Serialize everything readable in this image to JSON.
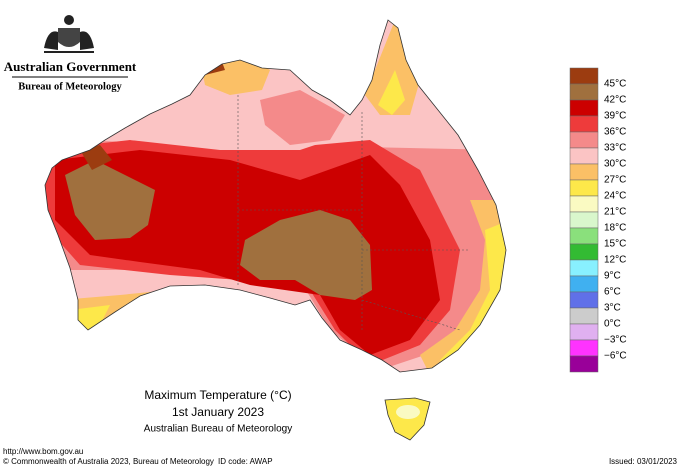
{
  "header": {
    "agency": "Australian Government",
    "bureau": "Bureau of Meteorology"
  },
  "map": {
    "title": "Maximum Temperature (°C)",
    "date": "1st January 2023",
    "source": "Australian Bureau of Meteorology"
  },
  "legend": {
    "colors": [
      "#9c3c10",
      "#a0703e",
      "#cc0000",
      "#ee3b3b",
      "#f48a8a",
      "#fbc4c4",
      "#fbc066",
      "#fde84a",
      "#fafac2",
      "#d9f7cc",
      "#8ae07c",
      "#33bb33",
      "#88f0ff",
      "#40b0f0",
      "#6070e8",
      "#cccccc",
      "#e0b0f0",
      "#ff33ff",
      "#990099"
    ],
    "labels": [
      "45°C",
      "42°C",
      "39°C",
      "36°C",
      "33°C",
      "30°C",
      "27°C",
      "24°C",
      "21°C",
      "18°C",
      "15°C",
      "12°C",
      "9°C",
      "6°C",
      "3°C",
      "0°C",
      "−3°C",
      "−6°C"
    ]
  },
  "footer": {
    "url": "http://www.bom.gov.au",
    "copyright": "© Commonwealth of Australia 2023, Bureau of Meteorology",
    "id_code": "ID code: AWAP",
    "issued": "Issued: 03/01/2023"
  }
}
